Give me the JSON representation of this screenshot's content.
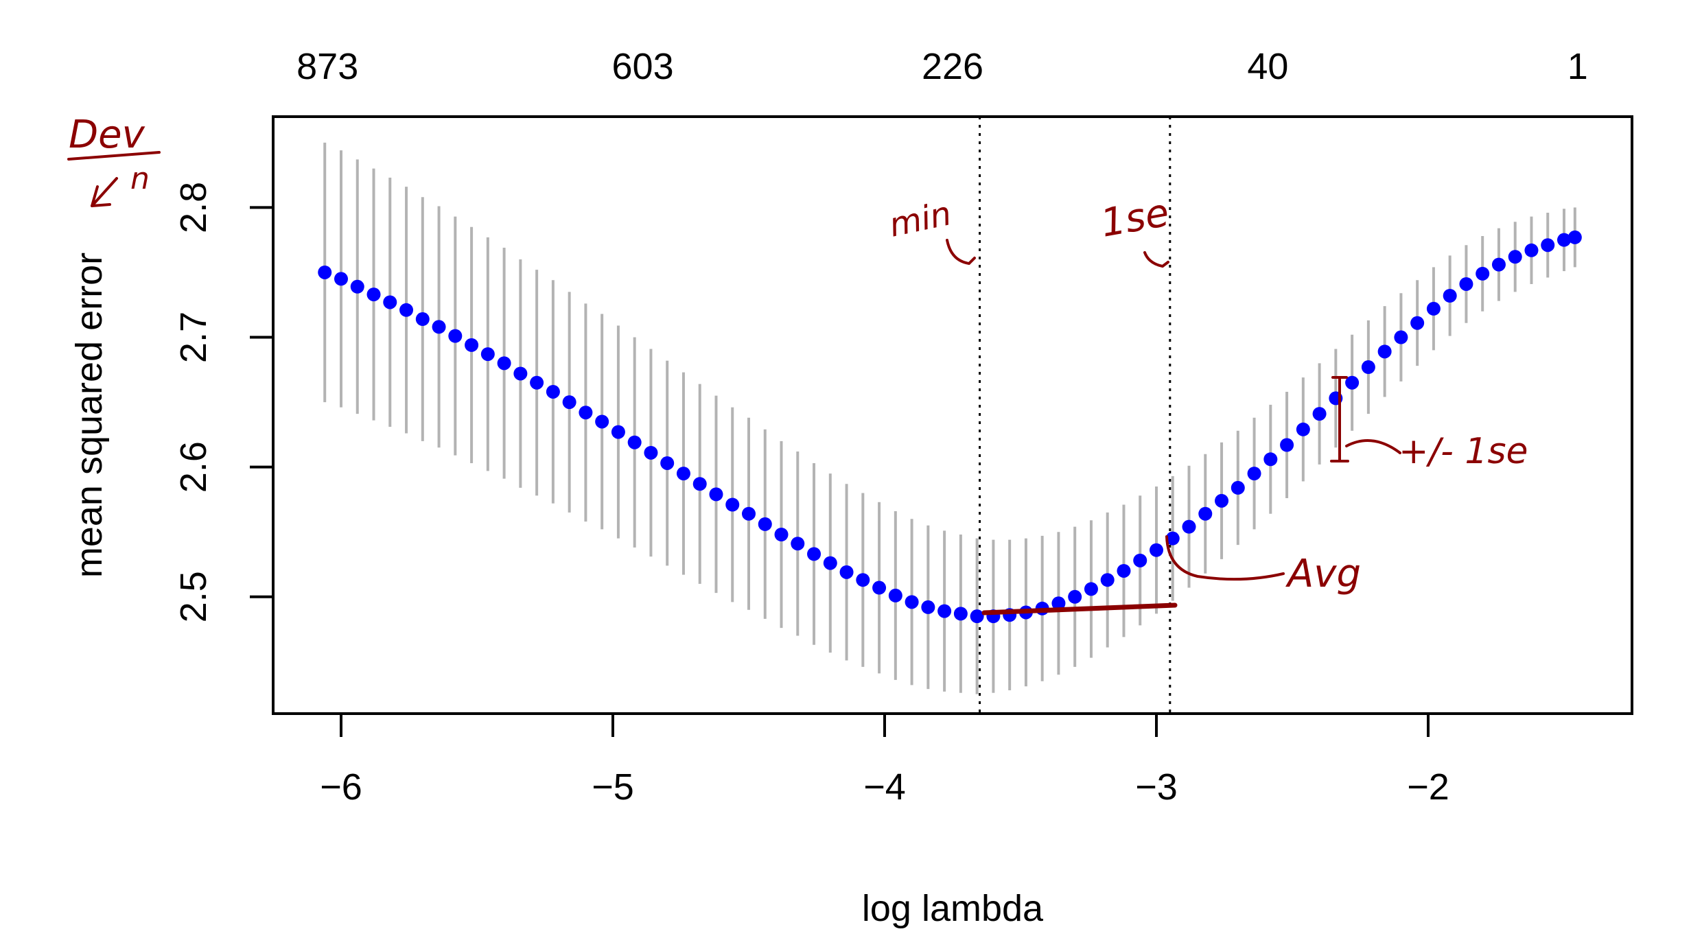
{
  "chart_data": {
    "type": "line",
    "title": "",
    "xlabel": "log lambda",
    "ylabel": "mean squared error",
    "xlim": [
      -6.25,
      -1.25
    ],
    "ylim": [
      2.41,
      2.87
    ],
    "x_ticks": [
      -6,
      -5,
      -4,
      -3,
      -2
    ],
    "x_tick_labels": [
      "−6",
      "−5",
      "−4",
      "−3",
      "−2"
    ],
    "y_ticks": [
      2.5,
      2.6,
      2.7,
      2.8
    ],
    "y_tick_labels": [
      "2.5",
      "2.6",
      "2.7",
      "2.8"
    ],
    "top_axis": {
      "ticks": [
        -6.05,
        -4.89,
        -3.75,
        -2.59,
        -1.45
      ],
      "labels": [
        "873",
        "603",
        "226",
        "40",
        "1"
      ]
    },
    "series": [
      {
        "x": [
          -6.06,
          -6.0,
          -5.94,
          -5.88,
          -5.82,
          -5.76,
          -5.7,
          -5.64,
          -5.58,
          -5.52,
          -5.46,
          -5.4,
          -5.34,
          -5.28,
          -5.22,
          -5.16,
          -5.1,
          -5.04,
          -4.98,
          -4.92,
          -4.86,
          -4.8,
          -4.74,
          -4.68,
          -4.62,
          -4.56,
          -4.5,
          -4.44,
          -4.38,
          -4.32,
          -4.26,
          -4.2,
          -4.14,
          -4.08,
          -4.02,
          -3.96,
          -3.9,
          -3.84,
          -3.78,
          -3.72,
          -3.66,
          -3.6,
          -3.54,
          -3.48,
          -3.42,
          -3.36,
          -3.3,
          -3.24,
          -3.18,
          -3.12,
          -3.06,
          -3.0,
          -2.94,
          -2.88,
          -2.82,
          -2.76,
          -2.7,
          -2.64,
          -2.58,
          -2.52,
          -2.46,
          -2.4,
          -2.34,
          -2.28,
          -2.22,
          -2.16,
          -2.1,
          -2.04,
          -1.98,
          -1.92,
          -1.86,
          -1.8,
          -1.74,
          -1.68,
          -1.62,
          -1.56,
          -1.5,
          -1.46
        ],
        "y": [
          2.75,
          2.745,
          2.739,
          2.733,
          2.727,
          2.721,
          2.714,
          2.708,
          2.701,
          2.694,
          2.687,
          2.68,
          2.672,
          2.665,
          2.658,
          2.65,
          2.642,
          2.635,
          2.627,
          2.619,
          2.611,
          2.603,
          2.595,
          2.587,
          2.579,
          2.571,
          2.564,
          2.556,
          2.548,
          2.541,
          2.533,
          2.526,
          2.519,
          2.513,
          2.507,
          2.501,
          2.496,
          2.492,
          2.489,
          2.487,
          2.485,
          2.485,
          2.486,
          2.488,
          2.491,
          2.495,
          2.5,
          2.506,
          2.513,
          2.52,
          2.528,
          2.536,
          2.545,
          2.554,
          2.564,
          2.574,
          2.584,
          2.595,
          2.606,
          2.617,
          2.629,
          2.641,
          2.653,
          2.665,
          2.677,
          2.689,
          2.7,
          2.711,
          2.722,
          2.732,
          2.741,
          2.749,
          2.756,
          2.762,
          2.767,
          2.771,
          2.775,
          2.777
        ],
        "se": [
          0.1,
          0.099,
          0.098,
          0.097,
          0.096,
          0.095,
          0.094,
          0.093,
          0.092,
          0.091,
          0.09,
          0.089,
          0.088,
          0.087,
          0.086,
          0.085,
          0.084,
          0.083,
          0.082,
          0.081,
          0.08,
          0.079,
          0.078,
          0.077,
          0.076,
          0.075,
          0.074,
          0.073,
          0.072,
          0.071,
          0.07,
          0.069,
          0.068,
          0.067,
          0.066,
          0.065,
          0.064,
          0.063,
          0.062,
          0.061,
          0.06,
          0.059,
          0.058,
          0.057,
          0.056,
          0.055,
          0.054,
          0.053,
          0.052,
          0.051,
          0.05,
          0.049,
          0.048,
          0.047,
          0.046,
          0.045,
          0.044,
          0.043,
          0.042,
          0.041,
          0.04,
          0.039,
          0.038,
          0.037,
          0.036,
          0.035,
          0.034,
          0.033,
          0.032,
          0.031,
          0.03,
          0.029,
          0.028,
          0.027,
          0.026,
          0.025,
          0.024,
          0.023
        ],
        "color": "#0000ff",
        "errorbar_color": "#b3b3b3"
      }
    ],
    "vlines": [
      {
        "x": -3.65,
        "style": "dotted"
      },
      {
        "x": -2.95,
        "style": "dotted"
      }
    ],
    "grid": false,
    "legend": "none"
  },
  "annotations": {
    "color": "#8b0000",
    "dev_label": "Dev",
    "n_label": "n",
    "min_label": "min",
    "onese_label": "1se",
    "avg_label": "Avg",
    "pm_label": "+/- 1se"
  }
}
